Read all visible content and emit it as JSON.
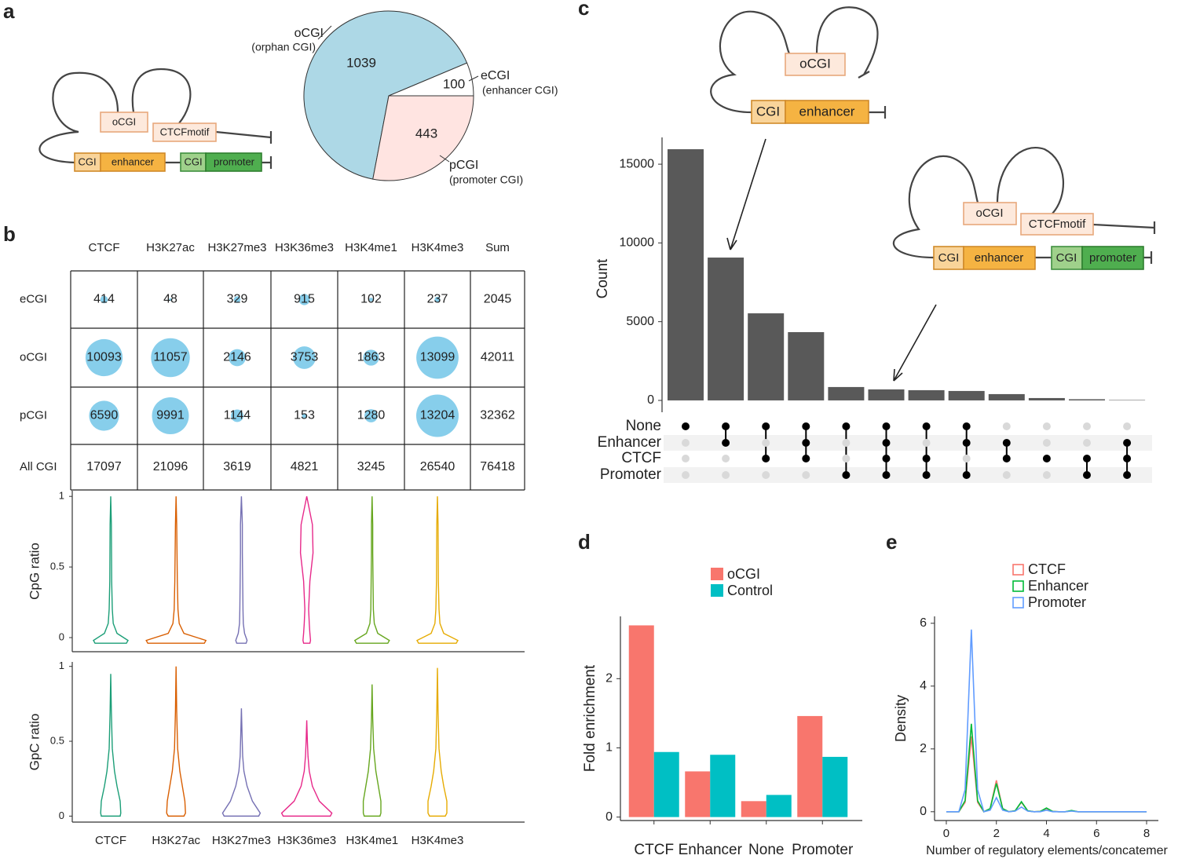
{
  "panels": [
    "a",
    "b",
    "c",
    "d",
    "e"
  ],
  "diagrams": {
    "a": [
      "oCGI",
      "CTCFmotif",
      "CGI",
      "enhancer",
      "CGI",
      "promoter"
    ],
    "c_upper": [
      "oCGI",
      "CGI",
      "enhancer"
    ],
    "c_lower": [
      "oCGI",
      "CTCFmotif",
      "CGI",
      "enhancer",
      "CGI",
      "promoter"
    ]
  },
  "chart_data": [
    {
      "type": "pie",
      "categories": [
        "oCGI",
        "eCGI",
        "pCGI"
      ],
      "descriptions": [
        "(orphan CGI)",
        "(enhancer CGI)",
        "(promoter CGI)"
      ],
      "values": [
        1039,
        100,
        443
      ],
      "colors": [
        "#add8e6",
        "#ffffff",
        "#ffe4e1"
      ]
    },
    {
      "type": "table",
      "columns": [
        "CTCF",
        "H3K27ac",
        "H3K27me3",
        "H3K36me3",
        "H3K4me1",
        "H3K4me3",
        "Sum"
      ],
      "rows": [
        "eCGI",
        "oCGI",
        "pCGI",
        "All CGI"
      ],
      "values": [
        [
          414,
          48,
          329,
          915,
          102,
          237,
          2045
        ],
        [
          10093,
          11057,
          2146,
          3753,
          1863,
          13099,
          42011
        ],
        [
          6590,
          9991,
          1144,
          153,
          1280,
          13204,
          32362
        ],
        [
          17097,
          21096,
          3619,
          4821,
          3245,
          26540,
          76418
        ]
      ],
      "color": "#87ceeb"
    },
    {
      "type": "violin",
      "ylabel": "CpG ratio",
      "ylim": [
        -0.1,
        1.04
      ],
      "yticks": [
        0,
        0.5,
        1
      ],
      "colors": [
        "#1b9e77",
        "#d95f02",
        "#7570b3",
        "#e7298a",
        "#66a61e",
        "#e6ab02"
      ],
      "violins": [
        {
          "y": [
            -0.04,
            -0.02,
            0.03,
            0.1,
            0.2,
            0.4,
            0.6,
            0.8,
            1.0
          ],
          "density": [
            0.5,
            0.55,
            0.2,
            0.08,
            0.05,
            0.03,
            0.025,
            0.02,
            0
          ]
        },
        {
          "y": [
            -0.04,
            -0.02,
            0.03,
            0.1,
            0.2,
            0.4,
            0.6,
            0.8,
            1.0
          ],
          "density": [
            0.9,
            0.95,
            0.25,
            0.1,
            0.06,
            0.04,
            0.03,
            0.02,
            0
          ]
        },
        {
          "y": [
            -0.04,
            -0.02,
            0.03,
            0.1,
            0.2,
            0.4,
            0.6,
            0.8,
            1.0
          ],
          "density": [
            0.15,
            0.18,
            0.1,
            0.06,
            0.05,
            0.04,
            0.03,
            0.03,
            0
          ]
        },
        {
          "y": [
            -0.04,
            -0.02,
            0.03,
            0.1,
            0.2,
            0.4,
            0.6,
            0.8,
            1.0
          ],
          "density": [
            0.1,
            0.12,
            0.1,
            0.08,
            0.06,
            0.1,
            0.2,
            0.18,
            0
          ]
        },
        {
          "y": [
            -0.04,
            -0.02,
            0.03,
            0.1,
            0.2,
            0.4,
            0.6,
            0.8,
            1.0
          ],
          "density": [
            0.5,
            0.55,
            0.18,
            0.07,
            0.04,
            0.03,
            0.02,
            0.02,
            0
          ]
        },
        {
          "y": [
            -0.04,
            -0.02,
            0.03,
            0.1,
            0.2,
            0.4,
            0.6,
            0.8,
            1.0
          ],
          "density": [
            0.6,
            0.65,
            0.2,
            0.08,
            0.05,
            0.03,
            0.025,
            0.02,
            0
          ]
        }
      ]
    },
    {
      "type": "violin",
      "ylabel": "GpC ratio",
      "ylim": [
        -0.04,
        1.03
      ],
      "yticks": [
        0,
        0.5,
        1
      ],
      "categories": [
        "CTCF",
        "H3K27ac",
        "H3K27me3",
        "H3K36me3",
        "H3K4me1",
        "H3K4me3"
      ],
      "colors": [
        "#1b9e77",
        "#d95f02",
        "#7570b3",
        "#e7298a",
        "#66a61e",
        "#e6ab02"
      ],
      "violins": [
        {
          "y": [
            0,
            0.02,
            0.1,
            0.2,
            0.3,
            0.45,
            0.7,
            0.95
          ],
          "density": [
            0.3,
            0.32,
            0.3,
            0.2,
            0.12,
            0.05,
            0.02,
            0
          ]
        },
        {
          "y": [
            0,
            0.02,
            0.1,
            0.2,
            0.3,
            0.45,
            0.7,
            1.0
          ],
          "density": [
            0.25,
            0.3,
            0.28,
            0.2,
            0.12,
            0.05,
            0.02,
            0
          ]
        },
        {
          "y": [
            0,
            0.02,
            0.1,
            0.2,
            0.3,
            0.4,
            0.55,
            0.72
          ],
          "density": [
            0.55,
            0.6,
            0.35,
            0.18,
            0.08,
            0.04,
            0.02,
            0
          ]
        },
        {
          "y": [
            0,
            0.02,
            0.1,
            0.2,
            0.3,
            0.4,
            0.5,
            0.64
          ],
          "density": [
            0.75,
            0.8,
            0.4,
            0.18,
            0.08,
            0.04,
            0.02,
            0
          ]
        },
        {
          "y": [
            0,
            0.02,
            0.1,
            0.2,
            0.3,
            0.45,
            0.65,
            0.88
          ],
          "density": [
            0.25,
            0.28,
            0.28,
            0.2,
            0.12,
            0.05,
            0.02,
            0
          ]
        },
        {
          "y": [
            0,
            0.02,
            0.1,
            0.2,
            0.3,
            0.45,
            0.7,
            0.99
          ],
          "density": [
            0.25,
            0.3,
            0.3,
            0.2,
            0.12,
            0.05,
            0.02,
            0
          ]
        }
      ]
    },
    {
      "type": "upset",
      "ylabel": "Count",
      "color": "#595959",
      "values": [
        15950,
        9070,
        5530,
        4335,
        850,
        700,
        650,
        600,
        400,
        150,
        75,
        25
      ],
      "ylim": [
        -750,
        16700
      ],
      "yticks": [
        0,
        5000,
        10000,
        15000
      ],
      "sets": [
        "None",
        "Enhancer",
        "CTCF",
        "Promoter"
      ],
      "matrix": [
        [
          1,
          1,
          1,
          1,
          1,
          1,
          1,
          1,
          0,
          0,
          0,
          0
        ],
        [
          0,
          1,
          0,
          1,
          0,
          1,
          0,
          1,
          1,
          0,
          0,
          1
        ],
        [
          0,
          0,
          1,
          1,
          0,
          1,
          1,
          0,
          1,
          1,
          1,
          1
        ],
        [
          0,
          0,
          0,
          0,
          1,
          1,
          1,
          1,
          0,
          0,
          1,
          1
        ]
      ]
    },
    {
      "type": "bar",
      "ylabel": "Fold enrichment",
      "categories": [
        "CTCF",
        "Enhancer",
        "None",
        "Promoter"
      ],
      "series": [
        {
          "name": "oCGI",
          "color": "#f8766d",
          "values": [
            2.77,
            0.66,
            0.23,
            1.46
          ]
        },
        {
          "name": "Control",
          "color": "#00bfc4",
          "values": [
            0.94,
            0.9,
            0.32,
            0.87
          ]
        }
      ],
      "ylim": [
        -0.05,
        2.9
      ],
      "yticks": [
        0,
        1,
        2
      ],
      "legend": "top"
    },
    {
      "type": "line",
      "xlabel": "Number of regulatory elements/concatemer",
      "ylabel": "Density",
      "x": [
        0,
        0.25,
        0.5,
        0.75,
        1,
        1.25,
        1.5,
        1.75,
        2,
        2.25,
        2.5,
        2.75,
        3,
        3.25,
        3.5,
        3.75,
        4,
        4.25,
        4.5,
        4.75,
        5,
        5.25,
        5.5,
        5.75,
        6,
        6.25,
        6.5,
        6.75,
        7,
        7.25,
        7.5,
        7.75,
        8
      ],
      "series": [
        {
          "name": "CTCF",
          "color": "#f8766d",
          "values": [
            0,
            0,
            0,
            0.3,
            2.4,
            0.3,
            0,
            0.1,
            1.0,
            0.1,
            0,
            0.03,
            0.3,
            0.03,
            0,
            0.01,
            0.1,
            0.01,
            0,
            0,
            0.03,
            0,
            0,
            0,
            0,
            0,
            0,
            0,
            0,
            0,
            0,
            0,
            0
          ]
        },
        {
          "name": "Enhancer",
          "color": "#00ba38",
          "values": [
            0,
            0,
            0,
            0.35,
            2.8,
            0.35,
            0,
            0.1,
            0.9,
            0.1,
            0,
            0.03,
            0.32,
            0.03,
            0,
            0.01,
            0.12,
            0.01,
            0,
            0,
            0.04,
            0,
            0,
            0,
            0,
            0,
            0,
            0,
            0,
            0,
            0,
            0,
            0
          ]
        },
        {
          "name": "Promoter",
          "color": "#619cff",
          "values": [
            0,
            0,
            0,
            0.7,
            5.8,
            0.7,
            0,
            0.05,
            0.45,
            0.05,
            0,
            0.02,
            0.15,
            0.02,
            0,
            0,
            0.05,
            0,
            0,
            0,
            0.02,
            0,
            0,
            0,
            0,
            0,
            0,
            0,
            0,
            0,
            0,
            0,
            0
          ]
        }
      ],
      "xlim": [
        -0.47,
        8.47
      ],
      "ylim": [
        -0.28,
        6.22
      ],
      "xticks": [
        0,
        2,
        4,
        6,
        8
      ],
      "yticks": [
        0,
        2,
        4,
        6
      ],
      "legend": "top"
    }
  ]
}
